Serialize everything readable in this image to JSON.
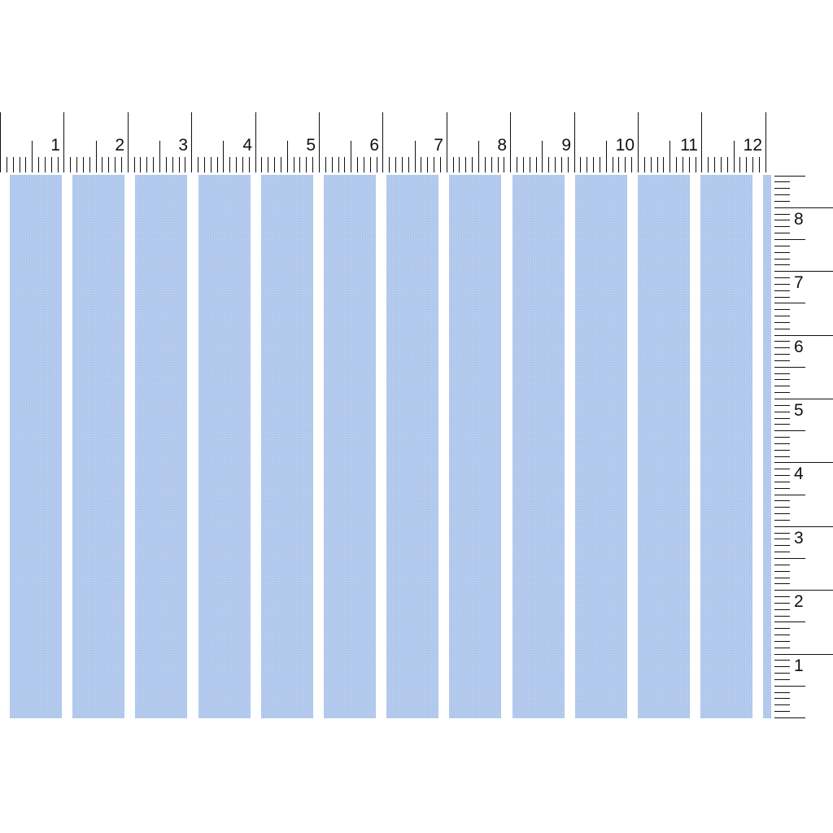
{
  "swatch": {
    "stripe_color": "#aec6ec",
    "background_color": "#ffffff",
    "stripe_count": 13
  },
  "top_ruler": {
    "labels": [
      "1",
      "2",
      "3",
      "4",
      "5",
      "6",
      "7",
      "8",
      "9",
      "10",
      "11",
      "12"
    ]
  },
  "side_ruler": {
    "labels": [
      "1",
      "2",
      "3",
      "4",
      "5",
      "6",
      "7",
      "8"
    ]
  }
}
